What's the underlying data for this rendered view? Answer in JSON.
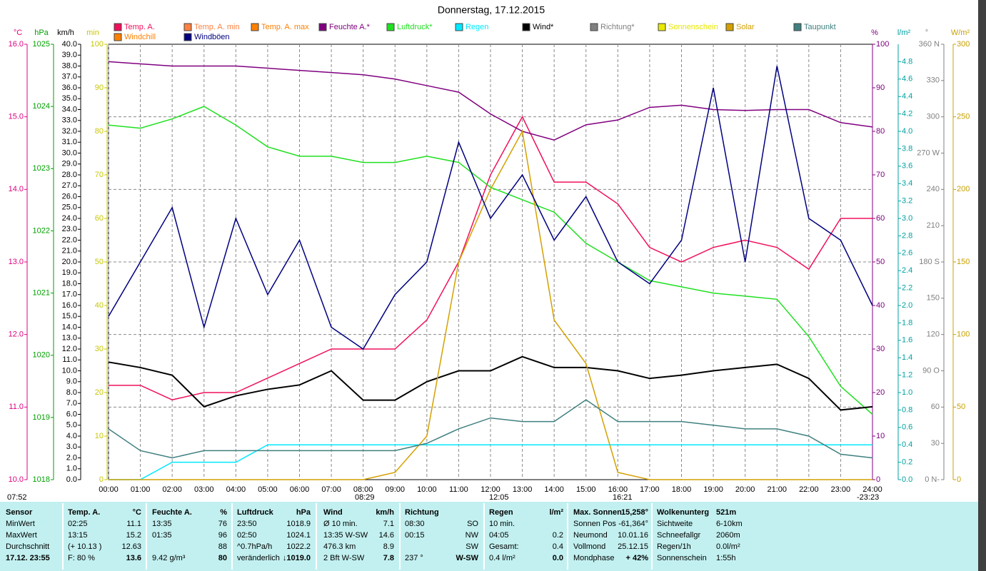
{
  "chart_data": {
    "type": "line",
    "title": "Donnerstag, 17.12.2015",
    "x": [
      0,
      1,
      2,
      3,
      4,
      5,
      6,
      7,
      8,
      9,
      10,
      11,
      12,
      13,
      14,
      15,
      16,
      17,
      18,
      19,
      20,
      21,
      22,
      23,
      24
    ],
    "xlim": [
      0,
      24
    ],
    "xticks": [
      {
        "value": 0,
        "label": "00:00"
      },
      {
        "value": 1,
        "label": "01:00"
      },
      {
        "value": 2,
        "label": "02:00"
      },
      {
        "value": 3,
        "label": "03:00"
      },
      {
        "value": 4,
        "label": "04:00"
      },
      {
        "value": 5,
        "label": "05:00"
      },
      {
        "value": 6,
        "label": "06:00"
      },
      {
        "value": 7,
        "label": "07:00"
      },
      {
        "value": 8,
        "label": "08:00"
      },
      {
        "value": 9,
        "label": "09:00"
      },
      {
        "value": 10,
        "label": "10:00"
      },
      {
        "value": 11,
        "label": "11:00"
      },
      {
        "value": 12,
        "label": "12:00"
      },
      {
        "value": 13,
        "label": "13:00"
      },
      {
        "value": 14,
        "label": "14:00"
      },
      {
        "value": 15,
        "label": "15:00"
      },
      {
        "value": 16,
        "label": "16:00"
      },
      {
        "value": 17,
        "label": "17:00"
      },
      {
        "value": 18,
        "label": "18:00"
      },
      {
        "value": 19,
        "label": "19:00"
      },
      {
        "value": 20,
        "label": "20:00"
      },
      {
        "value": 21,
        "label": "21:00"
      },
      {
        "value": 22,
        "label": "22:00"
      },
      {
        "value": 23,
        "label": "23:00"
      },
      {
        "value": 24,
        "label": "24:00"
      }
    ],
    "grid": true,
    "axes": [
      {
        "unit": "°C",
        "color": "#e0007f",
        "lim": [
          10,
          16
        ],
        "ticks": [
          {
            "value": 10,
            "label": "10.0"
          },
          {
            "value": 11,
            "label": "11.0"
          },
          {
            "value": 12,
            "label": "12.0"
          },
          {
            "value": 13,
            "label": "13.0"
          },
          {
            "value": 14,
            "label": "14.0"
          },
          {
            "value": 15,
            "label": "15.0"
          },
          {
            "value": 16,
            "label": "16.0"
          }
        ]
      },
      {
        "unit": "hPa",
        "color": "#00a000",
        "lim": [
          1018,
          1025
        ],
        "ticks": [
          1018,
          1019,
          1020,
          1021,
          1022,
          1023,
          1024,
          1025
        ]
      },
      {
        "unit": "km/h",
        "color": "#000000",
        "lim": [
          0,
          40
        ],
        "ticks": [
          {
            "value": 0,
            "label": "0.0"
          },
          {
            "value": 1,
            "label": "1.0"
          },
          {
            "value": 2,
            "label": "2.0"
          },
          {
            "value": 3,
            "label": "3.0"
          },
          {
            "value": 4,
            "label": "4.0"
          },
          {
            "value": 5,
            "label": "5.0"
          },
          {
            "value": 6,
            "label": "6.0"
          },
          {
            "value": 7,
            "label": "7.0"
          },
          {
            "value": 8,
            "label": "8.0"
          },
          {
            "value": 9,
            "label": "9.0"
          },
          {
            "value": 10,
            "label": "10.0"
          },
          {
            "value": 11,
            "label": "11.0"
          },
          {
            "value": 12,
            "label": "12.0"
          },
          {
            "value": 13,
            "label": "13.0"
          },
          {
            "value": 14,
            "label": "14.0"
          },
          {
            "value": 15,
            "label": "15.0"
          },
          {
            "value": 16,
            "label": "16.0"
          },
          {
            "value": 17,
            "label": "17.0"
          },
          {
            "value": 18,
            "label": "18.0"
          },
          {
            "value": 19,
            "label": "19.0"
          },
          {
            "value": 20,
            "label": "20.0"
          },
          {
            "value": 21,
            "label": "21.0"
          },
          {
            "value": 22,
            "label": "22.0"
          },
          {
            "value": 23,
            "label": "23.0"
          },
          {
            "value": 24,
            "label": "24.0"
          },
          {
            "value": 25,
            "label": "25.0"
          },
          {
            "value": 26,
            "label": "26.0"
          },
          {
            "value": 27,
            "label": "27.0"
          },
          {
            "value": 28,
            "label": "28.0"
          },
          {
            "value": 29,
            "label": "29.0"
          },
          {
            "value": 30,
            "label": "30.0"
          },
          {
            "value": 31,
            "label": "31.0"
          },
          {
            "value": 32,
            "label": "32.0"
          },
          {
            "value": 33,
            "label": "33.0"
          },
          {
            "value": 34,
            "label": "34.0"
          },
          {
            "value": 35,
            "label": "35.0"
          },
          {
            "value": 36,
            "label": "36.0"
          },
          {
            "value": 37,
            "label": "37.0"
          },
          {
            "value": 38,
            "label": "38.0"
          },
          {
            "value": 39,
            "label": "39.0"
          },
          {
            "value": 40,
            "label": "40.0"
          }
        ]
      },
      {
        "unit": "min",
        "color": "#c8c800",
        "lim": [
          0,
          100
        ],
        "ticks": [
          0,
          10,
          20,
          30,
          40,
          50,
          60,
          70,
          80,
          90,
          100
        ]
      },
      {
        "unit": "%",
        "color": "#800080",
        "lim": [
          0,
          100
        ],
        "ticks": [
          0,
          10,
          20,
          30,
          40,
          50,
          60,
          70,
          80,
          90,
          100
        ]
      },
      {
        "unit": "l/m²",
        "color": "#00a0a0",
        "lim": [
          0,
          5
        ],
        "ticks": [
          {
            "value": 0,
            "label": "0.0"
          },
          0.2,
          0.4,
          0.6,
          0.8,
          {
            "value": 1,
            "label": "1.0"
          },
          1.2,
          1.4,
          1.6,
          1.8,
          {
            "value": 2,
            "label": "2.0"
          },
          2.2,
          2.4,
          2.6,
          2.8,
          {
            "value": 3,
            "label": "3.0"
          },
          3.2,
          3.4,
          3.6,
          3.8,
          {
            "value": 4,
            "label": "4.0"
          },
          4.2,
          4.4,
          4.6,
          4.8
        ]
      },
      {
        "unit": "°",
        "color": "#808080",
        "lim": [
          0,
          360
        ],
        "ticks": [
          {
            "value": 0,
            "label": "0 N-"
          },
          30,
          60,
          {
            "value": 90,
            "label": "90 O"
          },
          120,
          150,
          {
            "value": 180,
            "label": "180 S"
          },
          210,
          240,
          {
            "value": 270,
            "label": "270 W"
          },
          300,
          330,
          {
            "value": 360,
            "label": "360 N"
          }
        ]
      },
      {
        "unit": "W/m²",
        "color": "#c8a000",
        "lim": [
          0,
          300
        ],
        "ticks": [
          0,
          50,
          100,
          150,
          200,
          250,
          300
        ]
      }
    ],
    "series": [
      {
        "name": "Temp. A.",
        "color": "#f0105a",
        "axis": 0,
        "values": [
          11.3,
          11.3,
          11.1,
          11.2,
          11.2,
          11.4,
          11.6,
          11.8,
          11.8,
          11.8,
          12.2,
          13.0,
          14.2,
          15.0,
          14.1,
          14.1,
          13.8,
          13.2,
          13.0,
          13.2,
          13.3,
          13.2,
          12.9,
          13.6,
          13.6
        ]
      },
      {
        "name": "Temp. A. min",
        "color": "#ff8040"
      },
      {
        "name": "Temp. A. max",
        "color": "#ff8000"
      },
      {
        "name": "Feuchte A.*",
        "color": "#800080",
        "axis": 4,
        "values": [
          96,
          95.5,
          95,
          95,
          95,
          94.5,
          94,
          93.5,
          93,
          92,
          90.5,
          89,
          84,
          80,
          78,
          81.5,
          82.6,
          85.5,
          86,
          85,
          84.8,
          85,
          85,
          82,
          81
        ]
      },
      {
        "name": "Luftdruck*",
        "color": "#20e020",
        "axis": 1,
        "values": [
          1023.7,
          1023.65,
          1023.8,
          1024.0,
          1023.7,
          1023.35,
          1023.2,
          1023.2,
          1023.1,
          1023.1,
          1023.2,
          1023.1,
          1022.7,
          1022.5,
          1022.3,
          1021.8,
          1021.5,
          1021.2,
          1021.1,
          1021.0,
          1020.95,
          1020.9,
          1020.3,
          1019.5,
          1019.05
        ]
      },
      {
        "name": "Regen",
        "color": "#00e8ff",
        "axis": 5,
        "values": [
          0,
          0,
          0.2,
          0.2,
          0.2,
          0.4,
          0.4,
          0.4,
          0.4,
          0.4,
          0.4,
          0.4,
          0.4,
          0.4,
          0.4,
          0.4,
          0.4,
          0.4,
          0.4,
          0.4,
          0.4,
          0.4,
          0.4,
          0.4,
          0.4
        ]
      },
      {
        "name": "Wind*",
        "color": "#000000",
        "axis": 2,
        "values": [
          10.8,
          10.3,
          9.6,
          6.7,
          7.7,
          8.3,
          8.7,
          10.0,
          7.3,
          7.3,
          9.0,
          10.0,
          10.0,
          11.3,
          10.3,
          10.3,
          10.0,
          9.3,
          9.6,
          10.0,
          10.3,
          10.6,
          9.3,
          6.4,
          6.7
        ]
      },
      {
        "name": "Richtung*",
        "color": "#808080"
      },
      {
        "name": "Sonnenschein",
        "color": "#e8e800"
      },
      {
        "name": "Solar",
        "color": "#d4a000",
        "axis": 7,
        "values": [
          0,
          0,
          0,
          0,
          0,
          0,
          0,
          0,
          0,
          5,
          30,
          150,
          200,
          240,
          110,
          80,
          5,
          0,
          0,
          0,
          0,
          0,
          0,
          0,
          0
        ]
      },
      {
        "name": "Taupunkt",
        "color": "#408080",
        "axis": 0,
        "values": [
          10.7,
          10.4,
          10.3,
          10.4,
          10.4,
          10.4,
          10.4,
          10.4,
          10.4,
          10.4,
          10.5,
          10.7,
          10.85,
          10.8,
          10.8,
          11.1,
          10.8,
          10.8,
          10.8,
          10.75,
          10.7,
          10.7,
          10.6,
          10.35,
          10.3
        ]
      },
      {
        "name": "Windchill",
        "color": "#ff8000"
      },
      {
        "name": "Windböen",
        "color": "#000080",
        "axis": 2,
        "values": [
          15,
          20,
          25,
          14,
          24,
          17,
          22,
          14,
          12,
          17,
          20,
          31,
          24,
          28,
          22,
          26,
          20,
          18,
          22,
          36,
          20,
          38,
          24,
          22,
          16
        ]
      }
    ],
    "annotations": [
      "07:52",
      "08:29",
      "12:05",
      "16:21",
      "-23:23"
    ]
  },
  "table": {
    "rows": [
      [
        "Sensor",
        "Temp. A.",
        "°C",
        "Feuchte A.",
        "%",
        "Luftdruck",
        "hPa",
        "Wind",
        "km/h",
        "Richtung",
        null,
        "Regen",
        "l/m²",
        "Max. Sonnen",
        "15,258°",
        "Wolkenunterg",
        "521m"
      ],
      [
        "MinWert",
        "02:25",
        "11.1",
        "13:35",
        "76",
        "23:50",
        "1018.9",
        "Ø 10 min.",
        "7.1",
        "08:30",
        "SO",
        "10 min.",
        null,
        "Sonnen Pos",
        "-61,364°",
        "Sichtweite",
        "6-10km"
      ],
      [
        "MaxWert",
        "13:15",
        "15.2",
        "01:35",
        "96",
        "02:50",
        "1024.1",
        "13:35   W-SW",
        "14.6",
        "00:15",
        "NW",
        "04:05",
        "0.2",
        "Neumond",
        "10.01.16",
        "Schneefallgr",
        "2060m"
      ],
      [
        "Durchschnitt",
        "(+ 10.13 )",
        "12.63",
        null,
        "88",
        "^0.7hPa/h",
        "1022.2",
        "476.3 km",
        "8.9",
        null,
        "SW",
        "Gesamt:",
        "0.4",
        "Vollmond",
        "25.12.15",
        "Regen/1h",
        "0.0l/m²"
      ],
      [
        "17.12. 23:55",
        "F: 80 %",
        "13.6",
        "9.42 g/m³",
        "80",
        "veränderlich",
        "↓1019.0",
        "2 Bft W-SW",
        "7.8",
        "237 °",
        "W-SW",
        "0.4 l/m²",
        "0.0",
        "Mondphase",
        "+ 42%",
        "Sonnenschein",
        "1:55h"
      ]
    ]
  }
}
